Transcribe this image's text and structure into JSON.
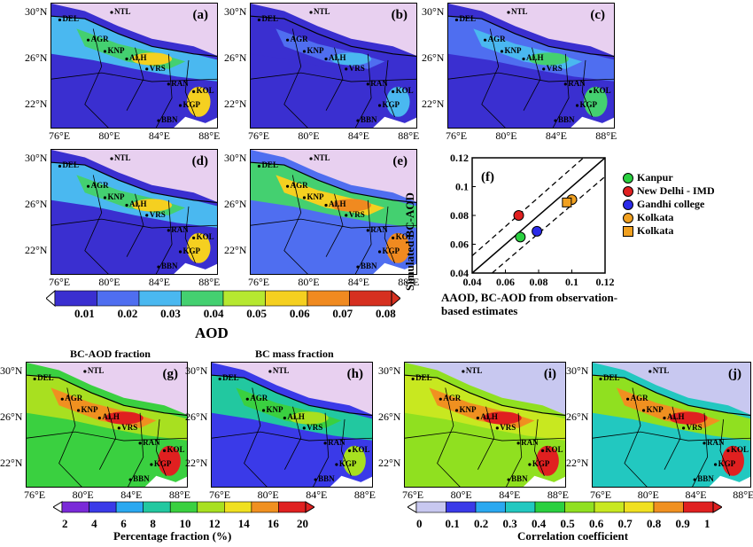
{
  "panels": {
    "a": {
      "letter": "(a)"
    },
    "b": {
      "letter": "(b)"
    },
    "c": {
      "letter": "(c)"
    },
    "d": {
      "letter": "(d)"
    },
    "e": {
      "letter": "(e)"
    },
    "f": {
      "letter": "(f)"
    },
    "g": {
      "letter": "(g)",
      "title": "BC-AOD fraction"
    },
    "h": {
      "letter": "(h)",
      "title": "BC mass fraction"
    },
    "i": {
      "letter": "(i)"
    },
    "j": {
      "letter": "(j)"
    }
  },
  "lat_ticks": [
    "30°N",
    "26°N",
    "22°N"
  ],
  "lon_ticks": [
    "76°E",
    "80°E",
    "84°E",
    "88°E"
  ],
  "cities": [
    "NTL",
    "DEL",
    "AGR",
    "KNP",
    "ALH",
    "VRS",
    "RAN",
    "KOL",
    "KGP",
    "BBN"
  ],
  "colorbars": {
    "aod": {
      "ticks": [
        "0.01",
        "0.02",
        "0.03",
        "0.04",
        "0.05",
        "0.06",
        "0.07",
        "0.08"
      ],
      "label": "AOD",
      "colors": [
        "#3a2fd0",
        "#4f6ef0",
        "#4ab8f0",
        "#44d070",
        "#b6e830",
        "#f5d020",
        "#f08a20",
        "#d63020"
      ]
    },
    "fraction": {
      "ticks": [
        "2",
        "4",
        "6",
        "8",
        "10",
        "12",
        "14",
        "16",
        "20"
      ],
      "label": "Percentage fraction (%)",
      "colors": [
        "#7a2ad8",
        "#3a3ae8",
        "#2aa8f0",
        "#22c8a0",
        "#3ad040",
        "#a8e020",
        "#f0e020",
        "#f09020",
        "#e02020"
      ]
    },
    "correlation": {
      "ticks": [
        "0",
        "0.1",
        "0.2",
        "0.3",
        "0.4",
        "0.5",
        "0.6",
        "0.7",
        "0.8",
        "0.9",
        "1"
      ],
      "label": "Correlation coefficient",
      "colors": [
        "#c8c8f0",
        "#3a3ae8",
        "#2aa8f0",
        "#22c8c0",
        "#2ad040",
        "#90e020",
        "#c8e820",
        "#f0e020",
        "#f09020",
        "#e02020"
      ]
    }
  },
  "colors": {
    "land_low": "#4a55e0",
    "sky": "#e8d0f0",
    "high": "#d63020"
  },
  "chart_data": {
    "type": "scatter",
    "xlabel": "AAOD, BC-AOD from observation-based estimates",
    "ylabel": "Simulated BC-AOD",
    "xlim": [
      0.04,
      0.12
    ],
    "ylim": [
      0.04,
      0.12
    ],
    "x_ticks": [
      "0.04",
      "0.06",
      "0.08",
      "0.1",
      "0.12"
    ],
    "y_ticks": [
      "0.04",
      "0.06",
      "0.08",
      "0.1",
      "0.12"
    ],
    "points": [
      {
        "name": "Kanpur",
        "x": 0.069,
        "y": 0.065,
        "color": "#2ad040",
        "marker": "circle"
      },
      {
        "name": "New Delhi - IMD",
        "x": 0.068,
        "y": 0.08,
        "color": "#e02020",
        "marker": "circle"
      },
      {
        "name": "Gandhi college",
        "x": 0.079,
        "y": 0.069,
        "color": "#2a2ae8",
        "marker": "circle"
      },
      {
        "name": "Kolkata",
        "x": 0.1,
        "y": 0.091,
        "color": "#f0a020",
        "marker": "circle"
      },
      {
        "name": "Kolkata",
        "x": 0.097,
        "y": 0.089,
        "color": "#f0a020",
        "marker": "square"
      }
    ]
  }
}
